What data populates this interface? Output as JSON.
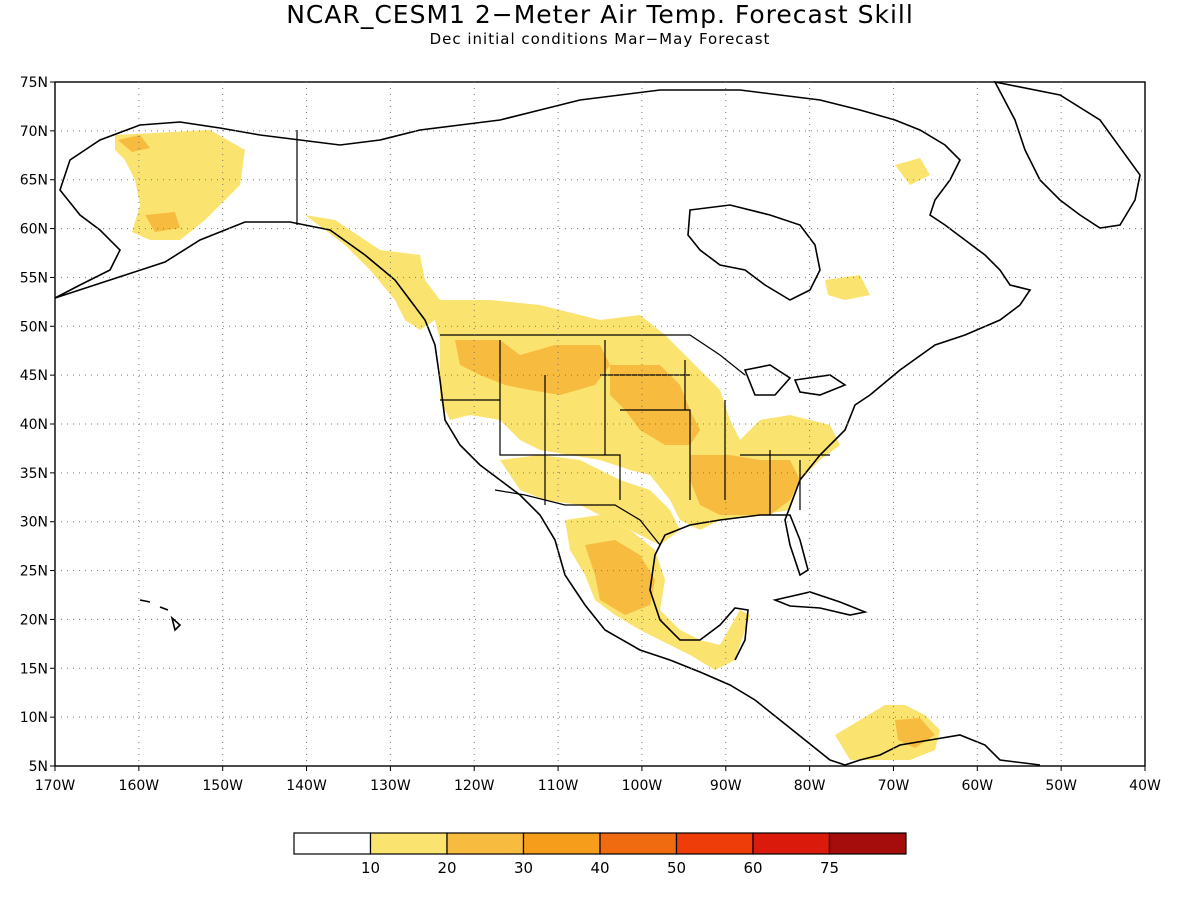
{
  "header": {
    "title": "NCAR_CESM1 2−Meter Air Temp. Forecast Skill",
    "subtitle": "Dec initial conditions  Mar−May Forecast"
  },
  "map": {
    "extent": {
      "lon_min": -170,
      "lon_max": -40,
      "lat_min": 5,
      "lat_max": 75
    },
    "lat_ticks": [
      "5N",
      "10N",
      "15N",
      "20N",
      "25N",
      "30N",
      "35N",
      "40N",
      "45N",
      "50N",
      "55N",
      "60N",
      "65N",
      "70N",
      "75N"
    ],
    "lon_ticks": [
      "170W",
      "160W",
      "150W",
      "140W",
      "130W",
      "120W",
      "110W",
      "100W",
      "90W",
      "80W",
      "70W",
      "60W",
      "50W",
      "40W"
    ],
    "gridlines": "dotted",
    "skill_regions": [
      {
        "name": "alaska",
        "level": 1
      },
      {
        "name": "northwest-us-canada",
        "level": 1
      },
      {
        "name": "montana-idaho",
        "level": 2
      },
      {
        "name": "central-plains",
        "level": 2
      },
      {
        "name": "southeast-us",
        "level": 2
      },
      {
        "name": "mexico",
        "level": 2
      },
      {
        "name": "central-america",
        "level": 1
      },
      {
        "name": "northern-south-america",
        "level": 2
      }
    ]
  },
  "colorbar": {
    "labels": [
      "10",
      "20",
      "30",
      "40",
      "50",
      "60",
      "75"
    ],
    "colors": [
      "#ffffff",
      "#fbe36f",
      "#f7bb40",
      "#f69e1c",
      "#f06a10",
      "#ee3d08",
      "#da1a0b",
      "#a50c0c"
    ]
  }
}
